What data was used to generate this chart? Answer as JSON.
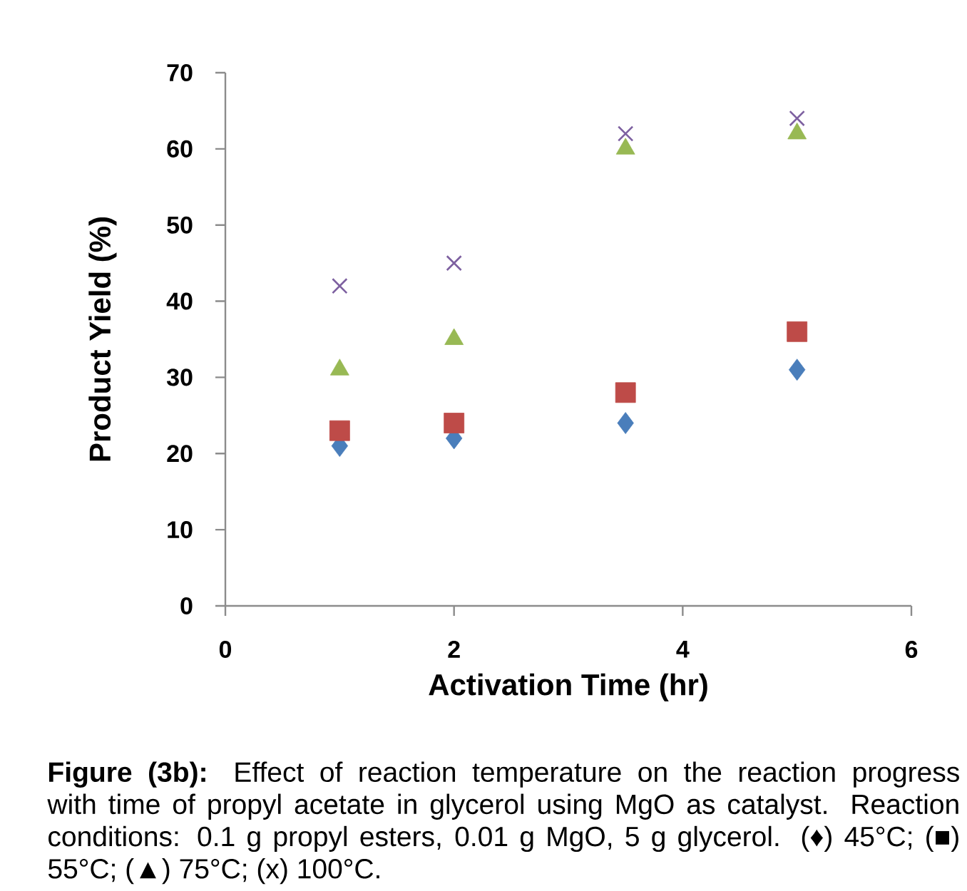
{
  "chart_data": {
    "type": "scatter",
    "xlabel": "Activation Time (hr)",
    "ylabel": "Product Yield (%)",
    "x": [
      1,
      2,
      3.5,
      5
    ],
    "series": [
      {
        "color": "#4a7ebb",
        "marker": "diamond",
        "values": [
          21,
          22,
          24,
          31
        ]
      },
      {
        "color": "#be4b48",
        "marker": "square",
        "values": [
          23,
          24,
          28,
          36
        ]
      },
      {
        "color": "#98b954",
        "marker": "triangle",
        "values": [
          31,
          35,
          60,
          62
        ]
      },
      {
        "color": "#7d60a0",
        "marker": "cross",
        "values": [
          42,
          45,
          62,
          64
        ]
      }
    ],
    "xlim": [
      0,
      6
    ],
    "xticks": [
      0,
      2,
      4,
      6
    ],
    "ylim": [
      0,
      70
    ],
    "yticks": [
      0,
      10,
      20,
      30,
      40,
      50,
      60,
      70
    ],
    "grid": false,
    "annotations": [
      "**Figure (3b):** Effect of reaction temperature on the reaction progress with time of propyl acetate in glycerol using MgO as catalyst. Reaction conditions: 0.1 g propyl esters, 0.01 g MgO, 5 g glycerol. (♦) 45°C; (■) 55°C; (▲) 75°C; (x) 100°C."
    ]
  }
}
